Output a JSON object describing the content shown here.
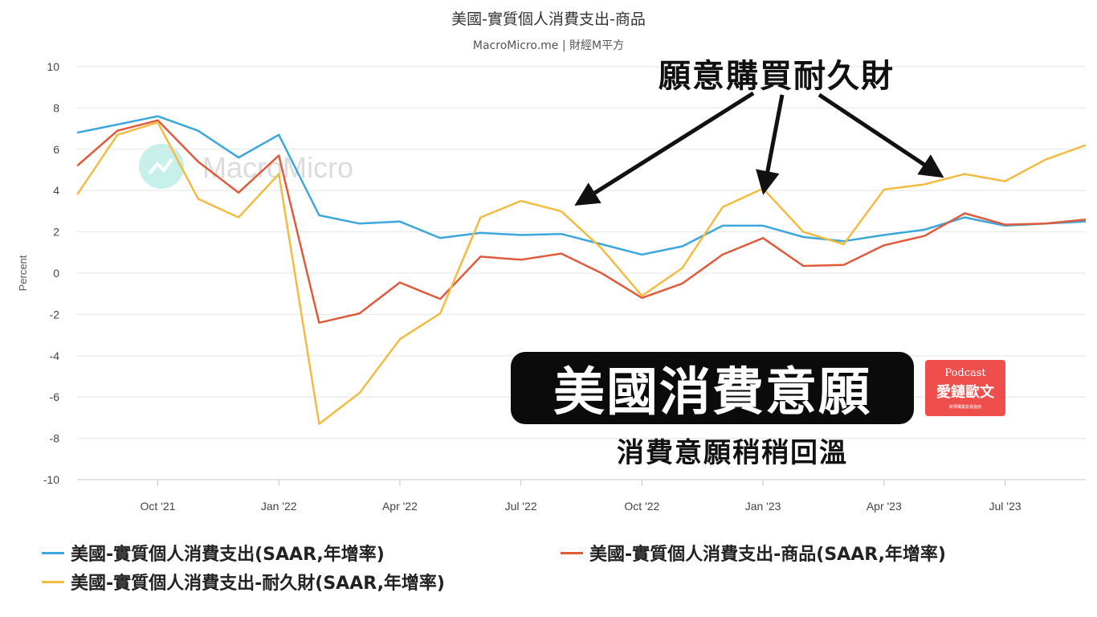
{
  "chart_data": {
    "type": "line",
    "title": "美國-實質個人消費支出-商品",
    "subtitle": "MacroMicro.me | 財經M平方",
    "watermark": "MacroMicro",
    "ylabel": "Percent",
    "ylim": [
      -10,
      10
    ],
    "yticks": [
      10,
      8,
      6,
      4,
      2,
      0,
      -2,
      -4,
      -6,
      -8,
      -10
    ],
    "x_start": "2021-08",
    "x_end": "2023-09",
    "xtick_labels": [
      "Oct '21",
      "Jan '22",
      "Apr '22",
      "Jul '22",
      "Oct '22",
      "Jan '23",
      "Apr '23",
      "Jul '23"
    ],
    "xtick_dates": [
      "2021-10",
      "2022-01",
      "2022-04",
      "2022-07",
      "2022-10",
      "2023-01",
      "2023-04",
      "2023-07"
    ],
    "x": [
      "2021-08",
      "2021-09",
      "2021-10",
      "2021-11",
      "2021-12",
      "2022-01",
      "2022-02",
      "2022-03",
      "2022-04",
      "2022-05",
      "2022-06",
      "2022-07",
      "2022-08",
      "2022-09",
      "2022-10",
      "2022-11",
      "2022-12",
      "2023-01",
      "2023-02",
      "2023-03",
      "2023-04",
      "2023-05",
      "2023-06",
      "2023-07",
      "2023-08",
      "2023-09"
    ],
    "grid": true,
    "legend_position": "bottom",
    "series": [
      {
        "name": "美國-實質個人消費支出(SAAR,年增率)",
        "color": "#3ba7db",
        "values": [
          6.8,
          7.2,
          7.6,
          6.9,
          5.6,
          6.7,
          2.8,
          2.4,
          2.5,
          1.7,
          1.95,
          1.85,
          1.9,
          1.4,
          0.9,
          1.3,
          2.3,
          2.3,
          1.75,
          1.55,
          1.85,
          2.1,
          2.7,
          2.3,
          2.4,
          2.5
        ]
      },
      {
        "name": "美國-實質個人消費支出-商品(SAAR,年增率)",
        "color": "#e05a3c",
        "values": [
          5.2,
          6.9,
          7.4,
          5.4,
          3.9,
          5.7,
          -2.4,
          -1.95,
          -0.45,
          -1.25,
          0.8,
          0.65,
          0.95,
          0.0,
          -1.2,
          -0.5,
          0.9,
          1.7,
          0.35,
          0.4,
          1.35,
          1.8,
          2.9,
          2.35,
          2.4,
          2.6
        ]
      },
      {
        "name": "美國-實質個人消費支出-耐久財(SAAR,年增率)",
        "color": "#f2bc42",
        "values": [
          3.8,
          6.7,
          7.3,
          3.6,
          2.7,
          4.8,
          -7.3,
          -5.8,
          -3.2,
          -1.95,
          2.7,
          3.5,
          3.0,
          1.2,
          -1.1,
          0.25,
          3.2,
          4.1,
          2.0,
          1.4,
          4.05,
          4.3,
          4.8,
          4.45,
          5.5,
          6.2
        ]
      }
    ]
  },
  "annotations": {
    "arrow_title": "願意購買耐久財",
    "banner_text": "美國消費意願",
    "sub_text": "消費意願稍稍回溫",
    "logo": {
      "line1": "Podcast",
      "line2": "愛鏈歐文",
      "line3": "新學職業投資指南"
    }
  }
}
